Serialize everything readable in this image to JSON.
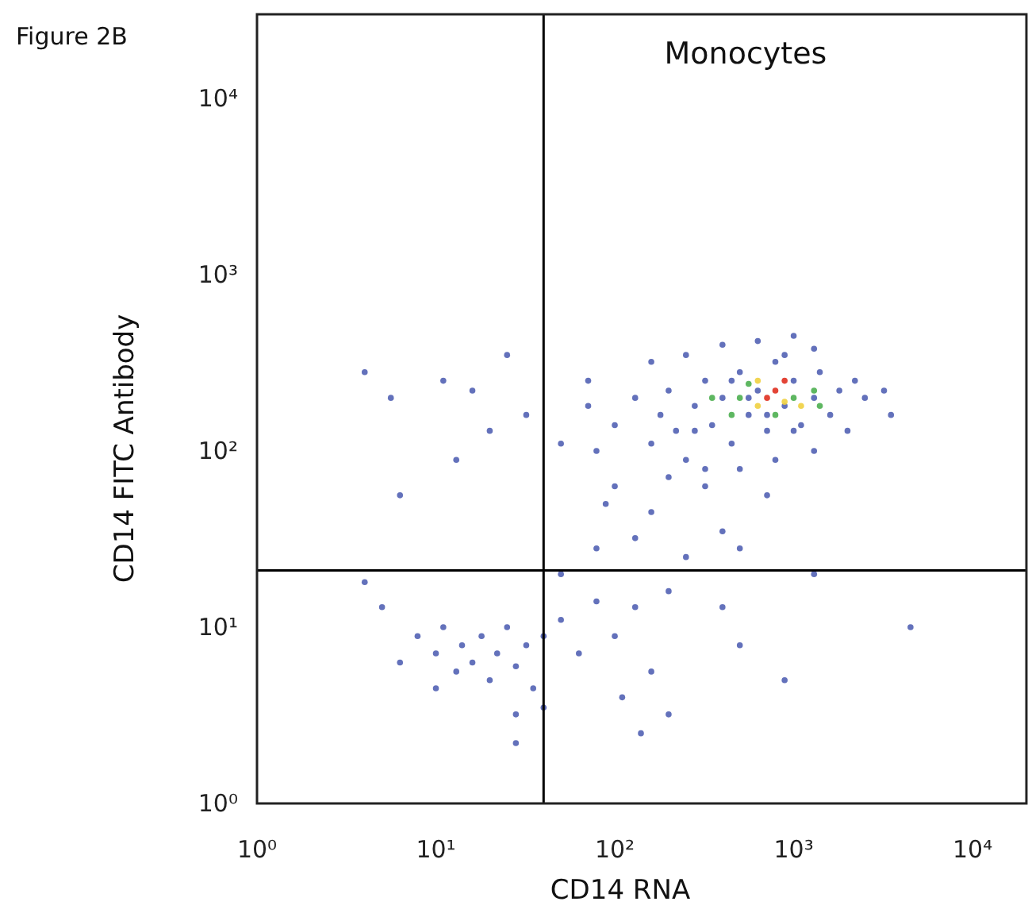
{
  "chart_data": {
    "type": "scatter",
    "title": "Figure 2B",
    "xlabel": "CD14 RNA",
    "ylabel": "CD14 FITC Antibody",
    "annotations": [
      "Monocytes"
    ],
    "log": "xy",
    "marker": "circle",
    "grid": false,
    "xlim": [
      1,
      20000
    ],
    "ylim": [
      1,
      30000
    ],
    "xticks": [
      {
        "value": 1,
        "label": "10⁰"
      },
      {
        "value": 10,
        "label": "10¹"
      },
      {
        "value": 100,
        "label": "10²"
      },
      {
        "value": 1000,
        "label": "10³"
      },
      {
        "value": 10000,
        "label": "10⁴"
      }
    ],
    "yticks": [
      {
        "value": 1,
        "label": "10⁰"
      },
      {
        "value": 10,
        "label": "10¹"
      },
      {
        "value": 100,
        "label": "10²"
      },
      {
        "value": 1000,
        "label": "10³"
      },
      {
        "value": 10000,
        "label": "10⁴"
      }
    ],
    "ref_lines": [
      {
        "axis": "x",
        "value": 40,
        "label": null,
        "color": "#000000"
      },
      {
        "axis": "y",
        "value": 21,
        "label": null,
        "color": "#000000"
      }
    ],
    "series": [
      {
        "color": "#5262b4",
        "x": [
          7.9,
          10,
          11,
          13,
          14,
          16,
          18,
          20,
          22,
          25,
          28,
          32,
          35,
          40,
          10,
          6.3,
          5,
          4,
          28,
          28,
          40,
          50,
          63,
          79,
          100,
          110,
          130,
          140,
          160,
          200,
          200,
          400,
          500,
          890,
          4500,
          1300,
          500,
          250,
          130,
          79,
          50,
          89,
          160,
          320,
          710,
          400,
          6.3,
          13,
          20,
          32,
          16,
          5.6,
          4,
          11,
          25,
          50,
          71,
          79,
          100,
          130,
          160,
          180,
          200,
          220,
          250,
          280,
          320,
          350,
          400,
          450,
          500,
          560,
          630,
          710,
          790,
          890,
          1000,
          1100,
          1300,
          1400,
          1600,
          1800,
          2000,
          2200,
          2500,
          3200,
          3500,
          160,
          250,
          400,
          630,
          1000,
          1300,
          790,
          500,
          320,
          200,
          1300,
          100,
          71,
          560,
          710,
          450,
          1000,
          280,
          890
        ],
        "values": [
          8.9,
          7.1,
          10,
          5.6,
          7.9,
          6.3,
          8.9,
          5,
          7.1,
          10,
          6,
          7.9,
          4.5,
          8.9,
          4.5,
          6.3,
          13,
          18,
          3.2,
          2.2,
          3.5,
          11,
          7.1,
          14,
          8.9,
          4,
          13,
          2.5,
          5.6,
          16,
          3.2,
          13,
          7.9,
          5,
          10,
          20,
          28,
          25,
          32,
          28,
          20,
          50,
          45,
          63,
          56,
          35,
          56,
          89,
          130,
          160,
          220,
          200,
          280,
          250,
          350,
          110,
          180,
          100,
          140,
          200,
          110,
          160,
          220,
          130,
          89,
          180,
          250,
          140,
          200,
          110,
          280,
          160,
          220,
          130,
          320,
          180,
          250,
          140,
          200,
          280,
          160,
          220,
          130,
          250,
          200,
          220,
          160,
          320,
          350,
          400,
          420,
          450,
          380,
          89,
          79,
          79,
          71,
          100,
          63,
          250,
          200,
          160,
          250,
          130,
          130,
          350
        ]
      },
      {
        "color": "#4caf50",
        "x": [
          500,
          1000,
          560,
          450,
          790,
          1300,
          350,
          1400
        ],
        "values": [
          200,
          200,
          240,
          160,
          160,
          220,
          200,
          180
        ]
      },
      {
        "color": "#f0d040",
        "x": [
          630,
          890,
          1100,
          630
        ],
        "values": [
          180,
          190,
          180,
          250
        ]
      },
      {
        "color": "#e03020",
        "x": [
          710,
          790,
          890
        ],
        "values": [
          200,
          220,
          250
        ]
      }
    ]
  }
}
